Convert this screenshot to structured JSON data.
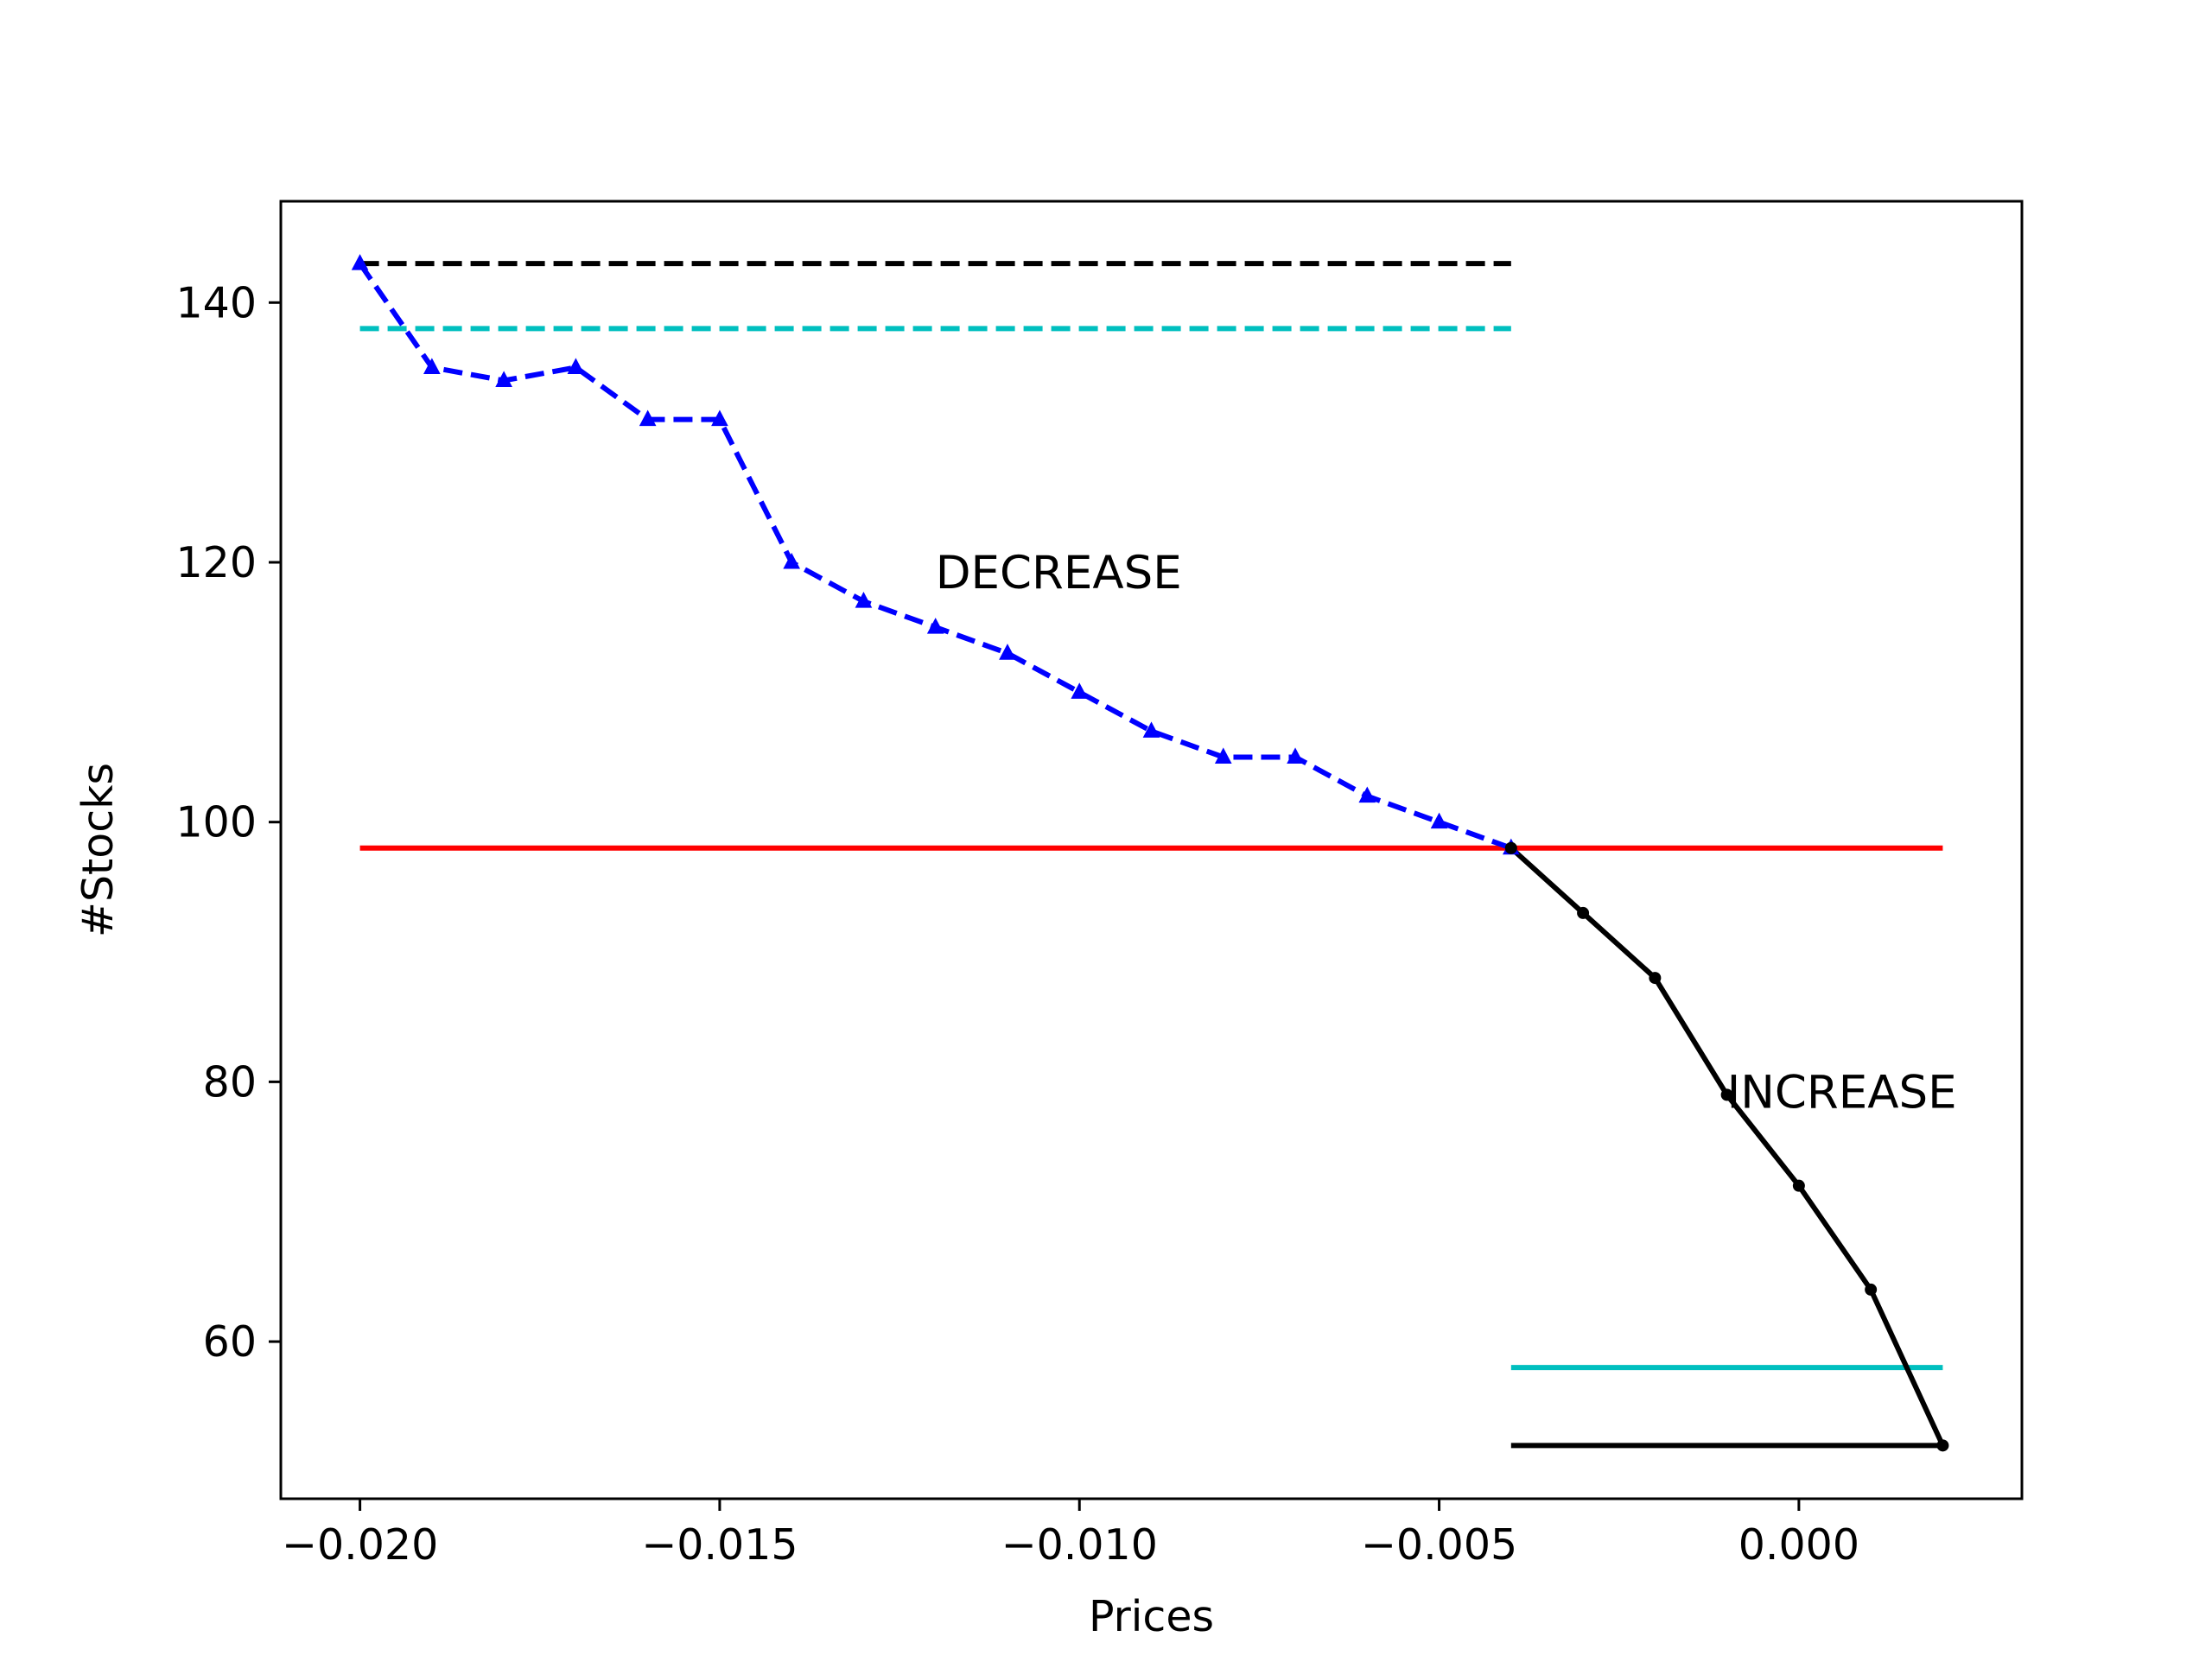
{
  "chart_data": {
    "type": "line",
    "title": "",
    "xlabel": "Prices",
    "ylabel": "#Stocks",
    "xlim": [
      -0.0211,
      0.0031
    ],
    "ylim": [
      47.9,
      147.8
    ],
    "x_ticks": [
      {
        "value": -0.02,
        "label": "−0.020"
      },
      {
        "value": -0.015,
        "label": "−0.015"
      },
      {
        "value": -0.01,
        "label": "−0.010"
      },
      {
        "value": -0.005,
        "label": "−0.005"
      },
      {
        "value": 0.0,
        "label": "0.000"
      }
    ],
    "y_ticks": [
      {
        "value": 60,
        "label": "60"
      },
      {
        "value": 80,
        "label": "80"
      },
      {
        "value": 100,
        "label": "100"
      },
      {
        "value": 120,
        "label": "120"
      },
      {
        "value": 140,
        "label": "140"
      }
    ],
    "grid": false,
    "legend": null,
    "series": [
      {
        "x": [
          -0.02,
          -0.019,
          -0.018,
          -0.017,
          -0.016,
          -0.015,
          -0.014,
          -0.013,
          -0.012,
          -0.011,
          -0.01,
          -0.009,
          -0.008,
          -0.007,
          -0.006,
          -0.005,
          -0.004
        ],
        "y": [
          143,
          135,
          134,
          135,
          131,
          131,
          120,
          117,
          115,
          113,
          110,
          107,
          105,
          105,
          102,
          100,
          98
        ],
        "color": "#0000ff",
        "line_style": "dashed",
        "marker": "triangle"
      },
      {
        "x": [
          -0.004,
          -0.003,
          -0.002,
          -0.001,
          0.0,
          0.001,
          0.002
        ],
        "y": [
          98,
          93,
          88,
          79,
          72,
          64,
          52
        ],
        "color": "#000000",
        "line_style": "solid",
        "marker": "point"
      }
    ],
    "reference_lines": [
      {
        "y": 143,
        "x_start": -0.02,
        "x_end": -0.004,
        "color": "#000000",
        "line_style": "dashed"
      },
      {
        "y": 138,
        "x_start": -0.02,
        "x_end": -0.004,
        "color": "#00bfbf",
        "line_style": "dashed"
      },
      {
        "y": 98,
        "x_start": -0.02,
        "x_end": 0.002,
        "color": "#ff0000",
        "line_style": "solid"
      },
      {
        "y": 58,
        "x_start": -0.004,
        "x_end": 0.002,
        "color": "#00bfbf",
        "line_style": "solid"
      },
      {
        "y": 52,
        "x_start": -0.004,
        "x_end": 0.002,
        "color": "#000000",
        "line_style": "solid"
      }
    ],
    "annotations": [
      {
        "text": "DECREASE",
        "x": -0.012,
        "y": 118
      },
      {
        "text": "INCREASE",
        "x": -0.001,
        "y": 78
      }
    ]
  }
}
